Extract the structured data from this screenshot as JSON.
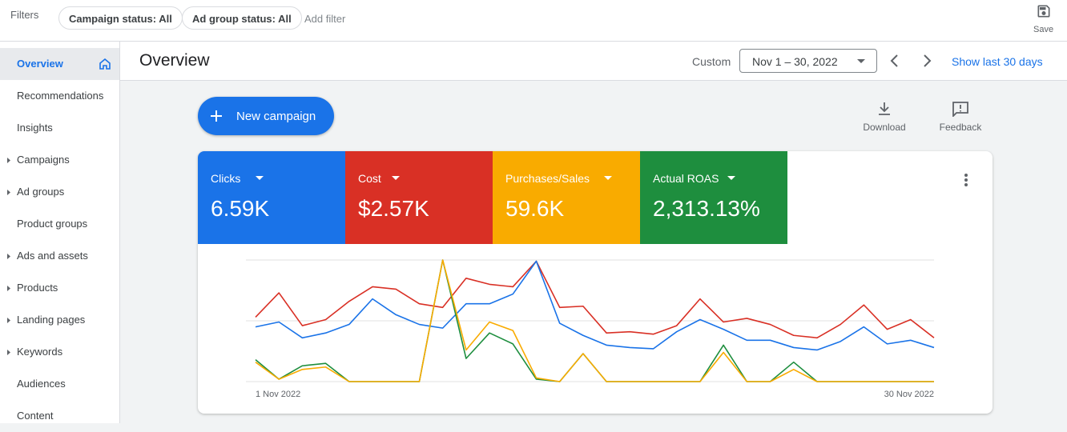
{
  "filters": {
    "label": "Filters",
    "chips": [
      "Campaign status: All",
      "Ad group status: All"
    ],
    "add": "Add filter",
    "save": "Save"
  },
  "nav": [
    "Overview",
    "Recommendations",
    "Insights",
    "Campaigns",
    "Ad groups",
    "Product groups",
    "Ads and assets",
    "Products",
    "Landing pages",
    "Keywords",
    "Audiences",
    "Content"
  ],
  "header": {
    "title": "Overview",
    "custom": "Custom",
    "date_range": "Nov 1 – 30, 2022",
    "show_last": "Show last 30 days"
  },
  "actions": {
    "new_campaign": "New campaign",
    "download": "Download",
    "feedback": "Feedback"
  },
  "chart_data": {
    "type": "line",
    "categories": [
      "1 Nov 2022",
      null,
      null,
      null,
      null,
      null,
      null,
      null,
      null,
      null,
      null,
      null,
      null,
      null,
      null,
      null,
      null,
      null,
      null,
      null,
      null,
      null,
      null,
      null,
      null,
      null,
      null,
      null,
      null,
      "30 Nov 2022"
    ],
    "series": [
      {
        "name": "Clicks",
        "total": "6.59K",
        "color": "#1a73e8",
        "values": [
          45,
          49,
          36,
          40,
          47,
          68,
          55,
          47,
          44,
          64,
          64,
          72,
          99,
          48,
          38,
          30,
          28,
          27,
          41,
          51,
          43,
          34,
          34,
          28,
          26,
          33,
          45,
          31,
          34,
          28
        ]
      },
      {
        "name": "Cost",
        "total": "$2.57K",
        "color": "#d93025",
        "values": [
          53,
          73,
          46,
          51,
          66,
          78,
          76,
          64,
          61,
          85,
          80,
          78,
          99,
          61,
          62,
          40,
          41,
          39,
          46,
          68,
          49,
          52,
          47,
          38,
          36,
          47,
          63,
          43,
          51,
          36
        ]
      },
      {
        "name": "Purchases/Sales",
        "total": "59.6K",
        "color": "#f9ab00",
        "values": [
          16,
          2,
          10,
          12,
          0,
          0,
          0,
          0,
          100,
          26,
          49,
          42,
          3,
          0,
          23,
          0,
          0,
          0,
          0,
          0,
          24,
          0,
          0,
          10,
          0,
          0,
          0,
          0,
          0,
          0
        ]
      },
      {
        "name": "Actual ROAS",
        "total": "2,313.13%",
        "color": "#1e8e3e",
        "values": [
          18,
          2,
          13,
          15,
          0,
          0,
          0,
          0,
          100,
          19,
          40,
          31,
          2,
          0,
          23,
          0,
          0,
          0,
          0,
          0,
          30,
          0,
          0,
          16,
          0,
          0,
          0,
          0,
          0,
          0
        ]
      }
    ],
    "ylim": [
      0,
      100
    ],
    "yticks": [
      0,
      50,
      100
    ],
    "grid": true
  }
}
